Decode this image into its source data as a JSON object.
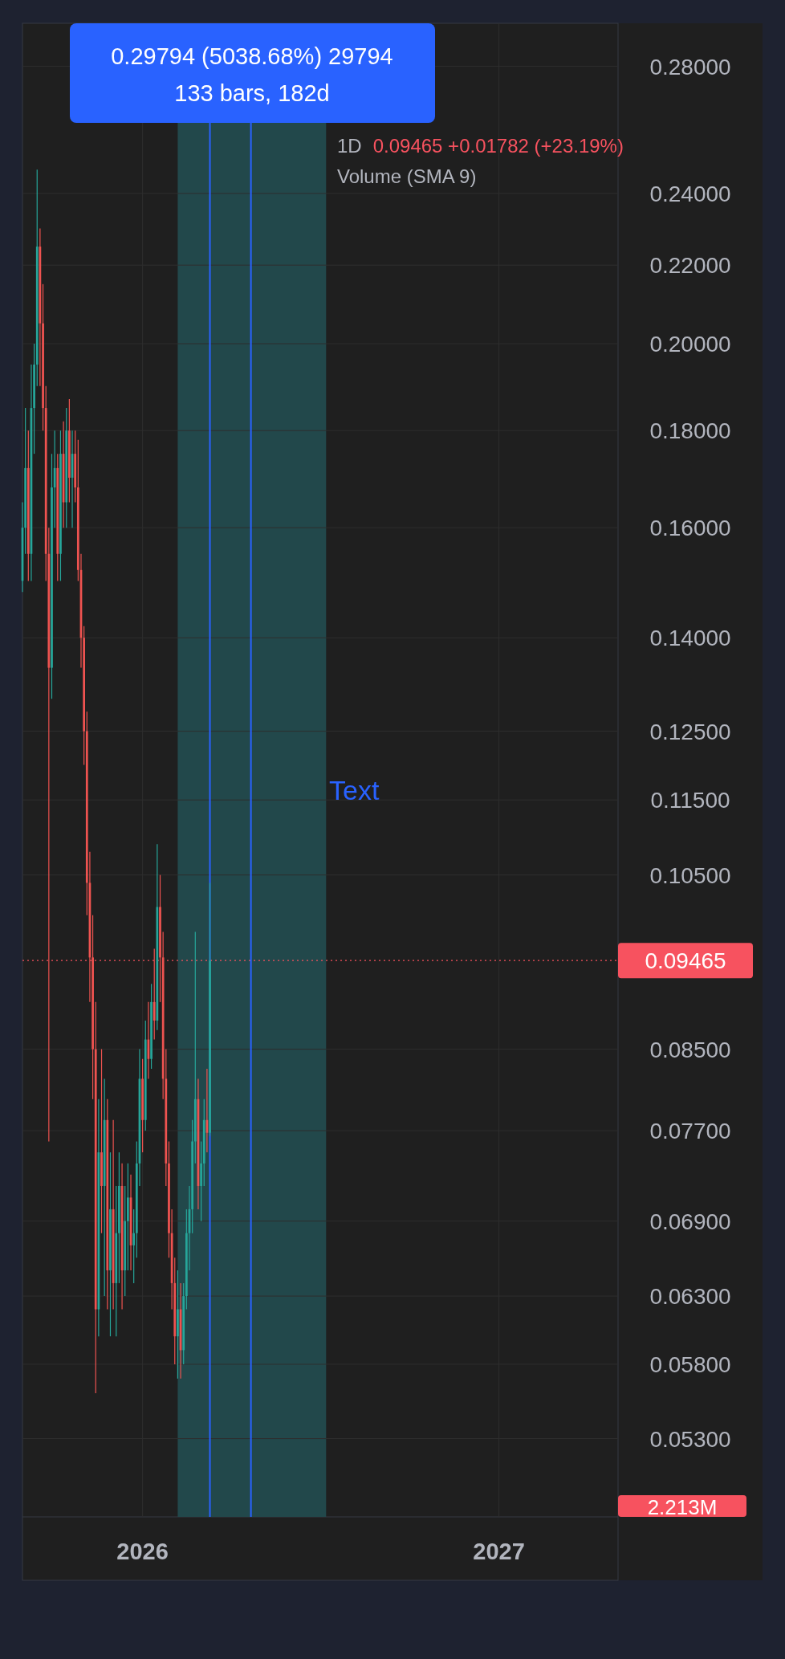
{
  "chart_data": {
    "type": "candlestick",
    "title": "1D",
    "x": [
      "2025-08-31",
      "2025-09-03",
      "2025-09-06",
      "2025-09-09",
      "2025-09-12",
      "2025-09-15",
      "2025-09-18",
      "2025-09-21",
      "2025-09-24",
      "2025-09-27",
      "2025-09-30",
      "2025-10-03",
      "2025-10-06",
      "2025-10-09",
      "2025-10-12",
      "2025-10-15",
      "2025-10-18",
      "2025-10-21",
      "2025-10-24",
      "2025-10-27",
      "2025-10-30",
      "2025-11-02",
      "2025-11-05",
      "2025-11-08",
      "2025-11-11",
      "2025-11-14",
      "2025-11-17",
      "2025-11-20",
      "2025-11-23",
      "2025-11-26",
      "2025-11-29",
      "2025-12-02",
      "2025-12-05",
      "2025-12-08",
      "2025-12-11",
      "2025-12-14",
      "2025-12-17",
      "2025-12-20",
      "2025-12-23",
      "2025-12-26",
      "2025-12-29",
      "2026-01-01",
      "2026-01-04",
      "2026-01-07",
      "2026-01-10",
      "2026-01-13",
      "2026-01-16",
      "2026-01-19",
      "2026-01-22",
      "2026-01-25",
      "2026-01-28",
      "2026-01-31",
      "2026-02-03",
      "2026-02-06",
      "2026-02-09",
      "2026-02-12",
      "2026-02-15",
      "2026-02-18",
      "2026-02-21",
      "2026-02-24",
      "2026-02-27",
      "2026-03-02",
      "2026-03-05",
      "2026-03-08",
      "2026-03-11"
    ],
    "ohlc": [
      [
        0.15,
        0.165,
        0.148,
        0.16
      ],
      [
        0.16,
        0.185,
        0.155,
        0.172
      ],
      [
        0.172,
        0.18,
        0.15,
        0.155
      ],
      [
        0.155,
        0.195,
        0.15,
        0.185
      ],
      [
        0.185,
        0.2,
        0.175,
        0.195
      ],
      [
        0.195,
        0.247,
        0.19,
        0.225
      ],
      [
        0.225,
        0.23,
        0.19,
        0.205
      ],
      [
        0.205,
        0.215,
        0.18,
        0.185
      ],
      [
        0.185,
        0.19,
        0.15,
        0.155
      ],
      [
        0.155,
        0.16,
        0.076,
        0.135
      ],
      [
        0.135,
        0.175,
        0.13,
        0.168
      ],
      [
        0.168,
        0.18,
        0.16,
        0.172
      ],
      [
        0.172,
        0.175,
        0.15,
        0.155
      ],
      [
        0.155,
        0.18,
        0.15,
        0.175
      ],
      [
        0.175,
        0.182,
        0.16,
        0.165
      ],
      [
        0.165,
        0.185,
        0.16,
        0.18
      ],
      [
        0.18,
        0.187,
        0.165,
        0.17
      ],
      [
        0.17,
        0.18,
        0.16,
        0.175
      ],
      [
        0.175,
        0.18,
        0.165,
        0.168
      ],
      [
        0.168,
        0.178,
        0.15,
        0.152
      ],
      [
        0.152,
        0.155,
        0.135,
        0.14
      ],
      [
        0.14,
        0.142,
        0.12,
        0.125
      ],
      [
        0.125,
        0.128,
        0.1,
        0.104
      ],
      [
        0.104,
        0.108,
        0.09,
        0.095
      ],
      [
        0.095,
        0.1,
        0.08,
        0.085
      ],
      [
        0.085,
        0.09,
        0.056,
        0.062
      ],
      [
        0.062,
        0.08,
        0.06,
        0.075
      ],
      [
        0.075,
        0.085,
        0.068,
        0.072
      ],
      [
        0.072,
        0.082,
        0.063,
        0.078
      ],
      [
        0.078,
        0.08,
        0.062,
        0.065
      ],
      [
        0.065,
        0.075,
        0.06,
        0.07
      ],
      [
        0.07,
        0.078,
        0.062,
        0.064
      ],
      [
        0.064,
        0.072,
        0.06,
        0.068
      ],
      [
        0.068,
        0.075,
        0.064,
        0.072
      ],
      [
        0.072,
        0.074,
        0.062,
        0.065
      ],
      [
        0.065,
        0.072,
        0.063,
        0.069
      ],
      [
        0.069,
        0.074,
        0.065,
        0.071
      ],
      [
        0.071,
        0.073,
        0.065,
        0.067
      ],
      [
        0.067,
        0.07,
        0.064,
        0.068
      ],
      [
        0.068,
        0.076,
        0.066,
        0.074
      ],
      [
        0.074,
        0.085,
        0.072,
        0.082
      ],
      [
        0.082,
        0.084,
        0.075,
        0.078
      ],
      [
        0.078,
        0.088,
        0.077,
        0.086
      ],
      [
        0.086,
        0.09,
        0.082,
        0.084
      ],
      [
        0.084,
        0.092,
        0.083,
        0.09
      ],
      [
        0.09,
        0.096,
        0.086,
        0.088
      ],
      [
        0.088,
        0.109,
        0.087,
        0.101
      ],
      [
        0.101,
        0.105,
        0.09,
        0.095
      ],
      [
        0.095,
        0.098,
        0.08,
        0.082
      ],
      [
        0.082,
        0.085,
        0.072,
        0.074
      ],
      [
        0.074,
        0.076,
        0.066,
        0.068
      ],
      [
        0.068,
        0.07,
        0.062,
        0.064
      ],
      [
        0.064,
        0.066,
        0.058,
        0.06
      ],
      [
        0.06,
        0.065,
        0.057,
        0.062
      ],
      [
        0.062,
        0.064,
        0.057,
        0.059
      ],
      [
        0.059,
        0.064,
        0.058,
        0.063
      ],
      [
        0.063,
        0.07,
        0.062,
        0.068
      ],
      [
        0.068,
        0.072,
        0.065,
        0.07
      ],
      [
        0.07,
        0.078,
        0.068,
        0.076
      ],
      [
        0.076,
        0.098,
        0.074,
        0.08
      ],
      [
        0.08,
        0.082,
        0.07,
        0.072
      ],
      [
        0.072,
        0.076,
        0.069,
        0.074
      ],
      [
        0.074,
        0.08,
        0.072,
        0.078
      ],
      [
        0.078,
        0.083,
        0.075,
        0.0768
      ],
      [
        0.0768,
        0.104,
        0.0765,
        0.09465
      ]
    ],
    "log": "y",
    "grid": true,
    "xlim": [
      "2025-08-31",
      "2027-05-03"
    ],
    "xticks": [
      "2026",
      "2027"
    ],
    "ylim": [
      0.0482,
      0.295
    ],
    "yticks": [
      {
        "value": 0.053,
        "label": "0.05300"
      },
      {
        "value": 0.058,
        "label": "0.05800"
      },
      {
        "value": 0.063,
        "label": "0.06300"
      },
      {
        "value": 0.069,
        "label": "0.06900"
      },
      {
        "value": 0.077,
        "label": "0.07700"
      },
      {
        "value": 0.085,
        "label": "0.08500"
      },
      {
        "value": 0.105,
        "label": "0.10500"
      },
      {
        "value": 0.115,
        "label": "0.11500"
      },
      {
        "value": 0.125,
        "label": "0.12500"
      },
      {
        "value": 0.14,
        "label": "0.14000"
      },
      {
        "value": 0.16,
        "label": "0.16000"
      },
      {
        "value": 0.18,
        "label": "0.18000"
      },
      {
        "value": 0.2,
        "label": "0.20000"
      },
      {
        "value": 0.22,
        "label": "0.22000"
      },
      {
        "value": 0.24,
        "label": "0.24000"
      },
      {
        "value": 0.28,
        "label": "0.28000"
      }
    ],
    "ref_lines": [
      {
        "axis": "y",
        "value": 0.09465,
        "label": "0.09465",
        "color": "#f7525f",
        "line_style": "dotted"
      },
      {
        "axis": "x",
        "value": "2026-03-11",
        "color": "#2962ff",
        "line_style": "solid"
      },
      {
        "axis": "x",
        "value": "2026-04-22",
        "color": "#2962ff",
        "line_style": "solid"
      }
    ],
    "bands": [
      {
        "axis": "x",
        "from": "2026-02-06",
        "to": "2026-07-08",
        "color": "#22484b"
      }
    ],
    "annotations": [
      "0.29794 (5038.68%) 29794",
      "133 bars, 182d",
      "0.09465 +0.01782 (+23.19%)",
      "Volume (SMA 9)",
      "2.213M",
      "Text"
    ]
  }
}
